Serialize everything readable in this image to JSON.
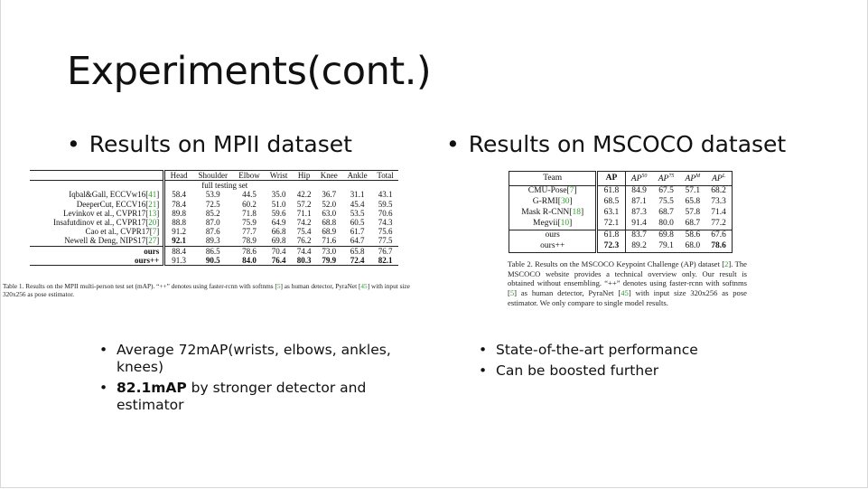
{
  "title": "Experiments(cont.)",
  "left": {
    "heading": "Results on MPII dataset",
    "table": {
      "columns": [
        "",
        "Head",
        "Shoulder",
        "Elbow",
        "Wrist",
        "Hip",
        "Knee",
        "Ankle",
        "Total"
      ],
      "subheader": "full testing set",
      "rows": [
        {
          "method": "Iqbal&Gall, ECCVw16",
          "cite": "41",
          "values": [
            "58.4",
            "53.9",
            "44.5",
            "35.0",
            "42.2",
            "36.7",
            "31.1",
            "43.1"
          ]
        },
        {
          "method": "DeeperCut, ECCV16",
          "cite": "21",
          "values": [
            "78.4",
            "72.5",
            "60.2",
            "51.0",
            "57.2",
            "52.0",
            "45.4",
            "59.5"
          ]
        },
        {
          "method": "Levinkov et al., CVPR17",
          "cite": "13",
          "values": [
            "89.8",
            "85.2",
            "71.8",
            "59.6",
            "71.1",
            "63.0",
            "53.5",
            "70.6"
          ]
        },
        {
          "method": "Insafutdinov et al., CVPR17",
          "cite": "20",
          "values": [
            "88.8",
            "87.0",
            "75.9",
            "64.9",
            "74.2",
            "68.8",
            "60.5",
            "74.3"
          ]
        },
        {
          "method": "Cao et al., CVPR17",
          "cite": "7",
          "values": [
            "91.2",
            "87.6",
            "77.7",
            "66.8",
            "75.4",
            "68.9",
            "61.7",
            "75.6"
          ]
        },
        {
          "method": "Newell & Deng, NIPS17",
          "cite": "27",
          "values": [
            "92.1",
            "89.3",
            "78.9",
            "69.8",
            "76.2",
            "71.6",
            "64.7",
            "77.5"
          ]
        },
        {
          "method": "ours",
          "cite": "",
          "values": [
            "88.4",
            "86.5",
            "78.6",
            "70.4",
            "74.4",
            "73.0",
            "65.8",
            "76.7"
          ]
        },
        {
          "method": "ours++",
          "cite": "",
          "values": [
            "91.3",
            "90.5",
            "84.0",
            "76.4",
            "80.3",
            "79.9",
            "72.4",
            "82.1"
          ]
        }
      ]
    },
    "caption": {
      "pre": "Table 1. Results on the MPII multi-person test set (mAP). “++” denotes using faster-rcnn with softnms [",
      "cite1": "5",
      "mid": "] as human detector, PyraNet [",
      "cite2": "45",
      "post": "] with input size 320x256 as pose estimator."
    },
    "bullets": [
      {
        "text": "Average 72mAP(wrists, elbows, ankles, knees)"
      },
      {
        "bold": "82.1mAP",
        "text": " by stronger detector and estimator"
      }
    ]
  },
  "right": {
    "heading": "Results on MSCOCO dataset",
    "table": {
      "columns": [
        "Team",
        "AP",
        "AP50",
        "AP75",
        "APM",
        "APL"
      ],
      "rows": [
        {
          "team": "CMU-Pose",
          "cite": "7",
          "values": [
            "61.8",
            "84.9",
            "67.5",
            "57.1",
            "68.2"
          ]
        },
        {
          "team": "G-RMI",
          "cite": "30",
          "values": [
            "68.5",
            "87.1",
            "75.5",
            "65.8",
            "73.3"
          ]
        },
        {
          "team": "Mask R-CNN",
          "cite": "18",
          "values": [
            "63.1",
            "87.3",
            "68.7",
            "57.8",
            "71.4"
          ]
        },
        {
          "team": "Megvii",
          "cite": "10",
          "values": [
            "72.1",
            "91.4",
            "80.0",
            "68.7",
            "77.2"
          ]
        },
        {
          "team": "ours",
          "cite": "",
          "values": [
            "61.8",
            "83.7",
            "69.8",
            "58.6",
            "67.6"
          ]
        },
        {
          "team": "ours++",
          "cite": "",
          "values": [
            "72.3",
            "89.2",
            "79.1",
            "68.0",
            "78.6"
          ]
        }
      ]
    },
    "caption": {
      "pre": "Table 2. Results on the MSCOCO Keypoint Challenge (AP) dataset [",
      "cite1": "2",
      "mid1": "]. The MSCOCO website provides a technical overview only. Our result is obtained without ensembling. “++” denotes using faster-rcnn with softnms [",
      "cite2": "5",
      "mid2": "] as human detector, PyraNet [",
      "cite3": "45",
      "post": "] with input size 320x256 as pose estimator. We only compare to single model results."
    },
    "bullets": [
      {
        "text": "State-of-the-art performance"
      },
      {
        "text": "Can be boosted further"
      }
    ]
  },
  "bullet_symbol": "•"
}
